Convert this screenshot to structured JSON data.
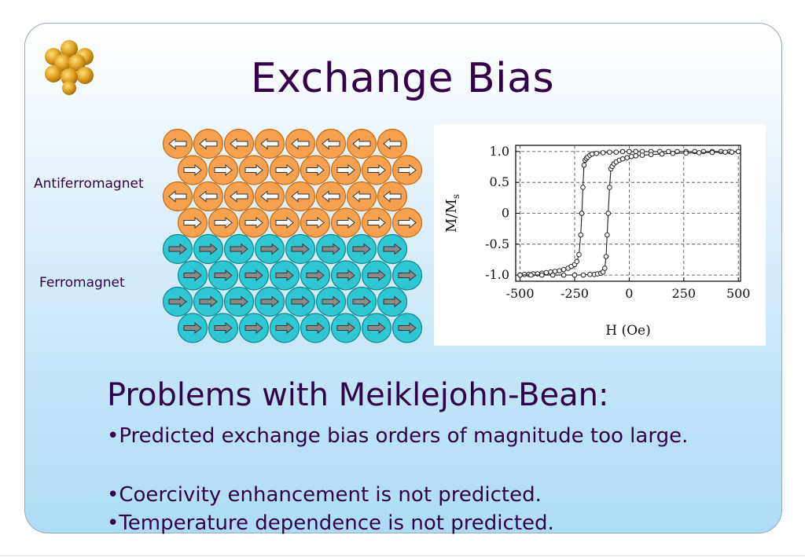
{
  "slide": {
    "title": "Exchange Bias",
    "labels": {
      "antiferromagnet": "Antiferromagnet",
      "ferromagnet": "Ferromagnet"
    },
    "colors": {
      "title": "#33004a",
      "afm_atom": "#f5a150",
      "fm_atom": "#2ec7d3",
      "logo": "#e0a020"
    },
    "icons": {
      "logo": "atom-cluster-icon",
      "afm_spin": "arrow-icon",
      "fm_spin": "arrow-right-icon"
    },
    "lattice": {
      "rows": [
        {
          "layer": "antiferromagnet",
          "direction": "left"
        },
        {
          "layer": "antiferromagnet",
          "direction": "right"
        },
        {
          "layer": "antiferromagnet",
          "direction": "left"
        },
        {
          "layer": "antiferromagnet",
          "direction": "right"
        },
        {
          "layer": "ferromagnet",
          "direction": "right"
        },
        {
          "layer": "ferromagnet",
          "direction": "right"
        },
        {
          "layer": "ferromagnet",
          "direction": "right"
        },
        {
          "layer": "ferromagnet",
          "direction": "right"
        }
      ]
    },
    "heading": "Problems with Meiklejohn-Bean:",
    "bullets": [
      "•Predicted exchange bias orders of magnitude too large.",
      "•Coercivity enhancement is not predicted.",
      "•Temperature dependence is not predicted."
    ]
  },
  "chart_data": {
    "type": "line",
    "xlabel": "H (Oe)",
    "ylabel": "M/Ms",
    "xlim": [
      -520,
      510
    ],
    "ylim": [
      -1.1,
      1.1
    ],
    "xticks": [
      "-500",
      "-250",
      "0",
      "250",
      "500"
    ],
    "yticks": [
      "1.0",
      "0.5",
      "0",
      "-0.5",
      "-1.0"
    ],
    "grid": true,
    "series": [
      {
        "x": [
          -500,
          -480,
          -460,
          -440,
          -420,
          -400,
          -380,
          -360,
          -340,
          -320,
          -300,
          -280,
          -265,
          -250,
          -240,
          -230,
          -222,
          -217,
          -212,
          -207,
          -202,
          -196,
          -190,
          -180,
          -170,
          -150,
          -120,
          -90,
          -60,
          -30,
          0,
          30,
          60,
          100,
          140,
          180,
          220,
          260,
          300,
          340,
          380,
          420,
          460,
          500
        ],
        "y": [
          -1.0,
          -0.99,
          -0.99,
          -0.98,
          -0.98,
          -0.97,
          -0.96,
          -0.95,
          -0.94,
          -0.93,
          -0.91,
          -0.89,
          -0.86,
          -0.83,
          -0.78,
          -0.67,
          -0.35,
          0.0,
          0.42,
          0.78,
          0.86,
          0.89,
          0.91,
          0.94,
          0.96,
          0.97,
          0.98,
          0.99,
          0.99,
          1.0,
          1.0,
          1.0,
          1.0,
          1.0,
          1.0,
          1.0,
          1.0,
          1.0,
          1.0,
          1.0,
          1.0,
          1.0,
          1.0,
          1.0
        ]
      },
      {
        "x": [
          -500,
          -450,
          -400,
          -350,
          -300,
          -250,
          -210,
          -180,
          -160,
          -145,
          -130,
          -120,
          -112,
          -106,
          -101,
          -96,
          -90,
          -84,
          -78,
          -70,
          -60,
          -45,
          -30,
          -10,
          10,
          30,
          60,
          100,
          150,
          200,
          260,
          320,
          380,
          440,
          470,
          500
        ],
        "y": [
          -1.0,
          -1.0,
          -1.0,
          -1.0,
          -1.0,
          -1.0,
          -1.0,
          -0.99,
          -0.99,
          -0.98,
          -0.97,
          -0.95,
          -0.89,
          -0.7,
          -0.35,
          0.0,
          0.42,
          0.72,
          0.76,
          0.8,
          0.83,
          0.86,
          0.88,
          0.9,
          0.92,
          0.93,
          0.94,
          0.95,
          0.96,
          0.97,
          0.975,
          0.98,
          0.985,
          0.99,
          0.99,
          1.0
        ]
      }
    ]
  }
}
